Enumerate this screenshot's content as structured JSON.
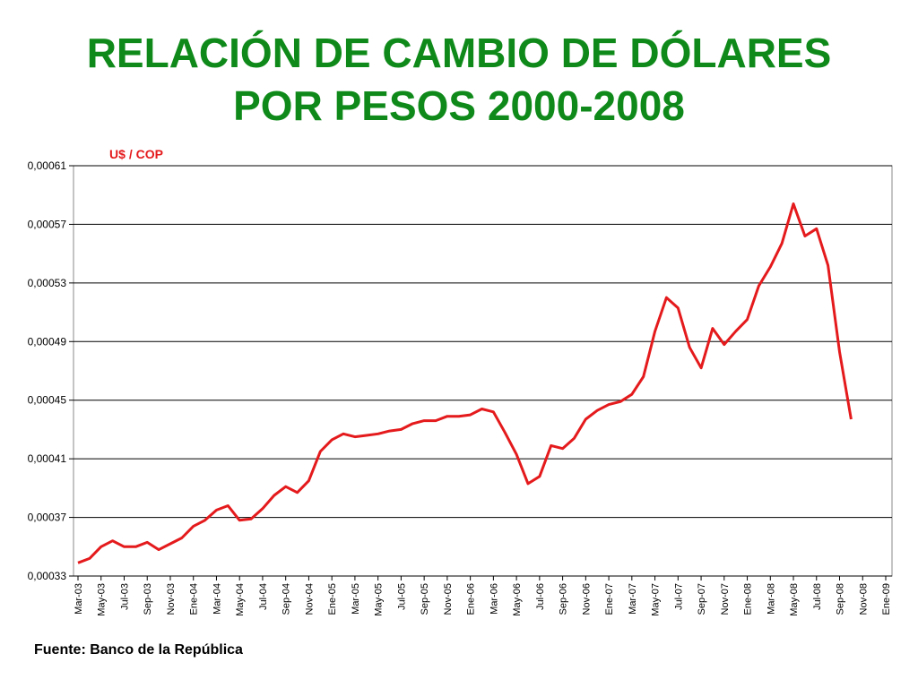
{
  "chart_data": {
    "type": "line",
    "title": [
      "RELACIÓN DE CAMBIO DE DÓLARES",
      "POR PESOS 2000-2008"
    ],
    "y_label": "U$ / COP",
    "source": "Fuente: Banco de la República",
    "categories": [
      "Mar-03",
      null,
      "May-03",
      null,
      "Jul-03",
      null,
      "Sep-03",
      null,
      "Nov-03",
      null,
      "Ene-04",
      null,
      "Mar-04",
      null,
      "May-04",
      null,
      "Jul-04",
      null,
      "Sep-04",
      null,
      "Nov-04",
      null,
      "Ene-05",
      null,
      "Mar-05",
      null,
      "May-05",
      null,
      "Jul-05",
      null,
      "Sep-05",
      null,
      "Nov-05",
      null,
      "Ene-06",
      null,
      "Mar-06",
      null,
      "May-06",
      null,
      "Jul-06",
      null,
      "Sep-06",
      null,
      "Nov-06",
      null,
      "Ene-07",
      null,
      "Mar-07",
      null,
      "May-07",
      null,
      "Jul-07",
      null,
      "Sep-07",
      null,
      "Nov-07",
      null,
      "Ene-08",
      null,
      "Mar-08",
      null,
      "May-08",
      null,
      "Jul-08",
      null,
      "Sep-08",
      null,
      "Nov-08",
      null,
      "Ene-09"
    ],
    "series": [
      {
        "name": "U$ / COP",
        "color": "#e41a1c",
        "values": [
          0.000339,
          0.000342,
          0.00035,
          0.000354,
          0.00035,
          0.00035,
          0.000353,
          0.000348,
          0.000352,
          0.000356,
          0.000364,
          0.000368,
          0.000375,
          0.000378,
          0.000368,
          0.000369,
          0.000376,
          0.000385,
          0.000391,
          0.000387,
          0.000395,
          0.000415,
          0.000423,
          0.000427,
          0.000425,
          0.000426,
          0.000427,
          0.000429,
          0.00043,
          0.000434,
          0.000436,
          0.000436,
          0.000439,
          0.000439,
          0.00044,
          0.000444,
          0.000442,
          0.000428,
          0.000413,
          0.000393,
          0.000398,
          0.000419,
          0.000417,
          0.000424,
          0.000437,
          0.000443,
          0.000447,
          0.000449,
          0.000454,
          0.000466,
          0.000497,
          0.00052,
          0.000513,
          0.000486,
          0.000472,
          0.000499,
          0.000488,
          0.000497,
          0.000505,
          0.000528,
          0.000541,
          0.000557,
          0.000584,
          0.000562,
          0.000567,
          0.000542,
          0.000483,
          0.000437,
          null,
          null,
          null
        ]
      }
    ],
    "ylim": [
      0.00033,
      0.00061
    ],
    "yticks": [
      {
        "value": 0.00033,
        "label": "0,00033"
      },
      {
        "value": 0.00037,
        "label": "0,00037"
      },
      {
        "value": 0.00041,
        "label": "0,00041"
      },
      {
        "value": 0.00045,
        "label": "0,00045"
      },
      {
        "value": 0.00049,
        "label": "0,00049"
      },
      {
        "value": 0.00053,
        "label": "0,00053"
      },
      {
        "value": 0.00057,
        "label": "0,00057"
      },
      {
        "value": 0.00061,
        "label": "0,00061"
      }
    ],
    "grid": true
  }
}
